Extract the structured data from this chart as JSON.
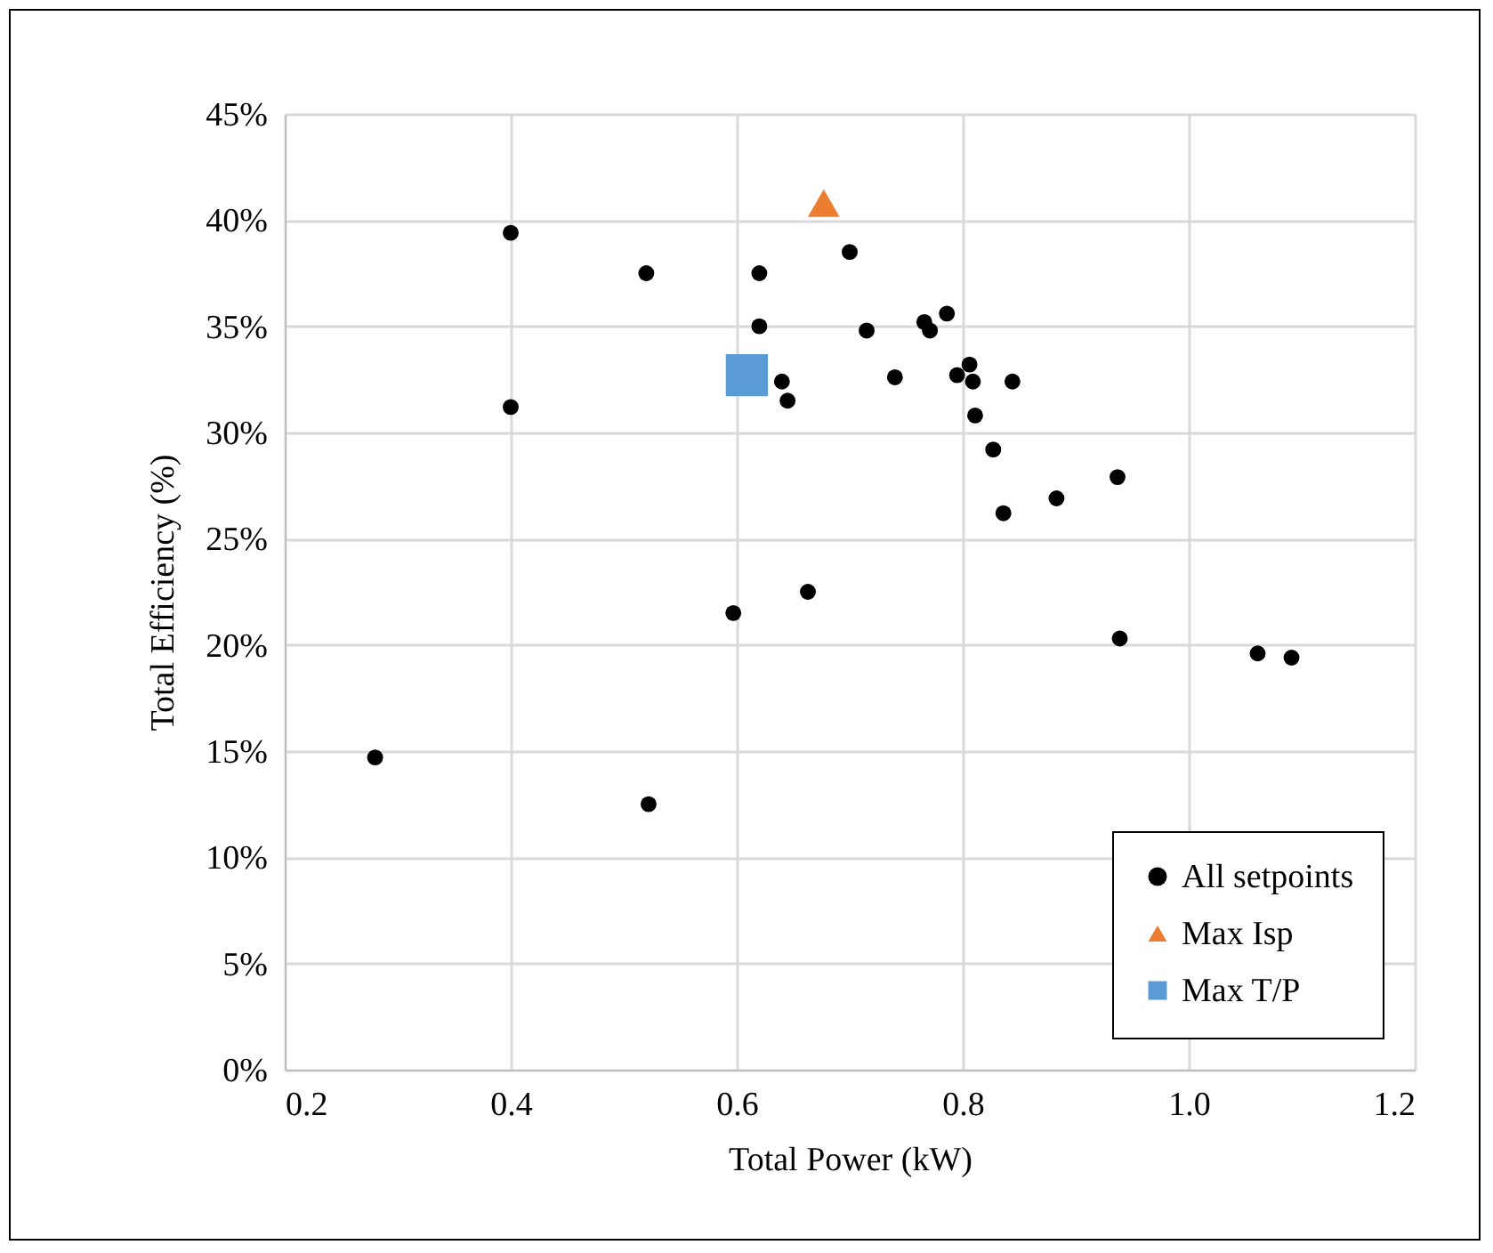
{
  "chart_data": {
    "type": "scatter",
    "xlabel": "Total Power (kW)",
    "ylabel": "Total Efficiency (%)",
    "xlim": [
      0.2,
      1.2
    ],
    "xticks": [
      0.2,
      0.4,
      0.6,
      0.8,
      {
        "value": 1,
        "label": "1.0"
      },
      1.2
    ],
    "ylim": [
      0,
      45
    ],
    "yticks": [
      {
        "value": 0,
        "label": "0%"
      },
      {
        "value": 5,
        "label": "5%"
      },
      {
        "value": 10,
        "label": "10%"
      },
      {
        "value": 15,
        "label": "15%"
      },
      {
        "value": 20,
        "label": "20%"
      },
      {
        "value": 25,
        "label": "25%"
      },
      {
        "value": 30,
        "label": "30%"
      },
      {
        "value": 35,
        "label": "35%"
      },
      {
        "value": 40,
        "label": "40%"
      },
      {
        "value": 45,
        "label": "45%"
      }
    ],
    "grid": true,
    "legend": "bottom right",
    "series": [
      {
        "name": "All setpoints",
        "color": "#000000",
        "marker": "circle",
        "x": [
          0.4,
          0.4,
          0.52,
          0.62,
          0.62,
          0.64,
          0.645,
          0.7,
          0.715,
          0.74,
          0.766,
          0.771,
          0.786,
          0.795,
          0.806,
          0.809,
          0.844,
          0.811,
          0.827,
          0.836,
          0.883,
          0.937,
          0.597,
          0.663,
          0.939,
          1.061,
          1.091,
          0.28,
          0.522
        ],
        "values": [
          39.4,
          31.2,
          37.5,
          37.5,
          35.0,
          32.4,
          31.5,
          38.5,
          34.8,
          32.6,
          35.2,
          34.8,
          35.6,
          32.7,
          33.2,
          32.4,
          32.4,
          30.8,
          29.2,
          26.2,
          26.9,
          27.9,
          21.5,
          22.5,
          20.3,
          19.6,
          19.4,
          14.7,
          12.5
        ]
      },
      {
        "name": "Max Isp",
        "color": "#ed7d31",
        "marker": "triangle",
        "x": [
          0.677
        ],
        "values": [
          40.8
        ]
      },
      {
        "name": "Max T/P",
        "color": "#5b9bd5",
        "marker": "square",
        "x": [
          0.609
        ],
        "values": [
          32.7
        ]
      }
    ]
  }
}
